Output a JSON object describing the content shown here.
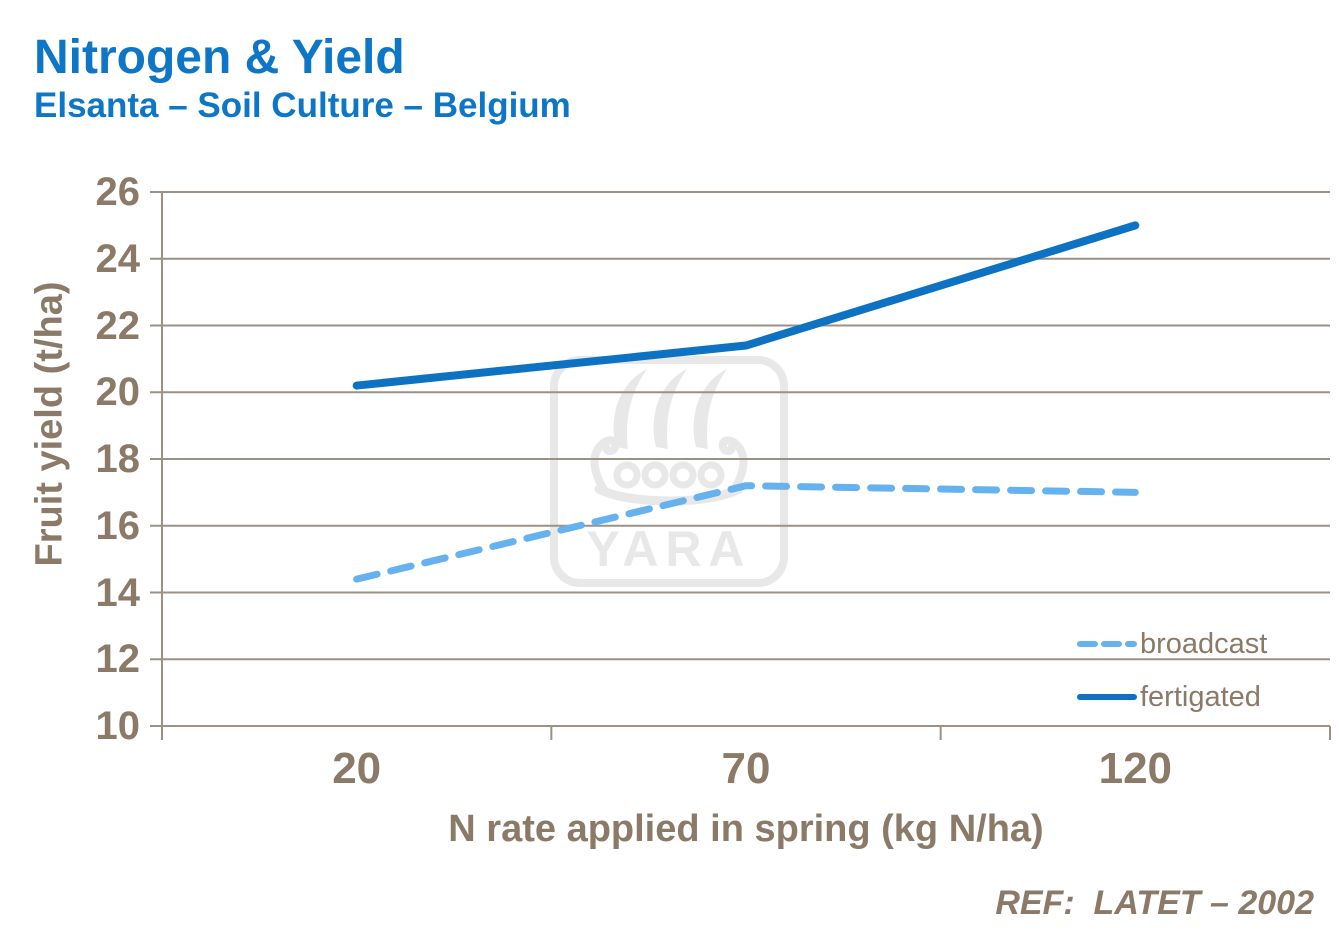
{
  "header": {
    "title": "Nitrogen & Yield",
    "subtitle": "Elsanta – Soil Culture – Belgium"
  },
  "footer": {
    "ref_text": "REF:  LATET – 2002"
  },
  "watermark": {
    "brand": "YARA",
    "icon": "viking-ship-logo"
  },
  "colors": {
    "title_blue": "#0e76c6",
    "fertigated_blue": "#0e72c2",
    "broadcast_blue": "#66b2ee",
    "axis_text_brown": "#8a7a67",
    "gridline_gray": "#9b9187",
    "watermark_gray": "#e8e8e8",
    "background": "#ffffff"
  },
  "chart_data": {
    "type": "line",
    "title": "Nitrogen & Yield",
    "subtitle": "Elsanta – Soil Culture – Belgium",
    "xlabel": "N rate applied in spring (kg N/ha)",
    "ylabel": "Fruit yield (t/ha)",
    "categories": [
      "20",
      "70",
      "120"
    ],
    "series": [
      {
        "name": "broadcast",
        "style": "dashed",
        "color_key": "broadcast_blue",
        "values": [
          14.4,
          17.2,
          17.0
        ]
      },
      {
        "name": "fertigated",
        "style": "solid",
        "color_key": "fertigated_blue",
        "values": [
          20.2,
          21.4,
          25.0
        ]
      }
    ],
    "ylim": [
      10,
      26
    ],
    "yticks": [
      10,
      12,
      14,
      16,
      18,
      20,
      22,
      24,
      26
    ],
    "grid": "horizontal",
    "legend_position": "inside-right"
  }
}
